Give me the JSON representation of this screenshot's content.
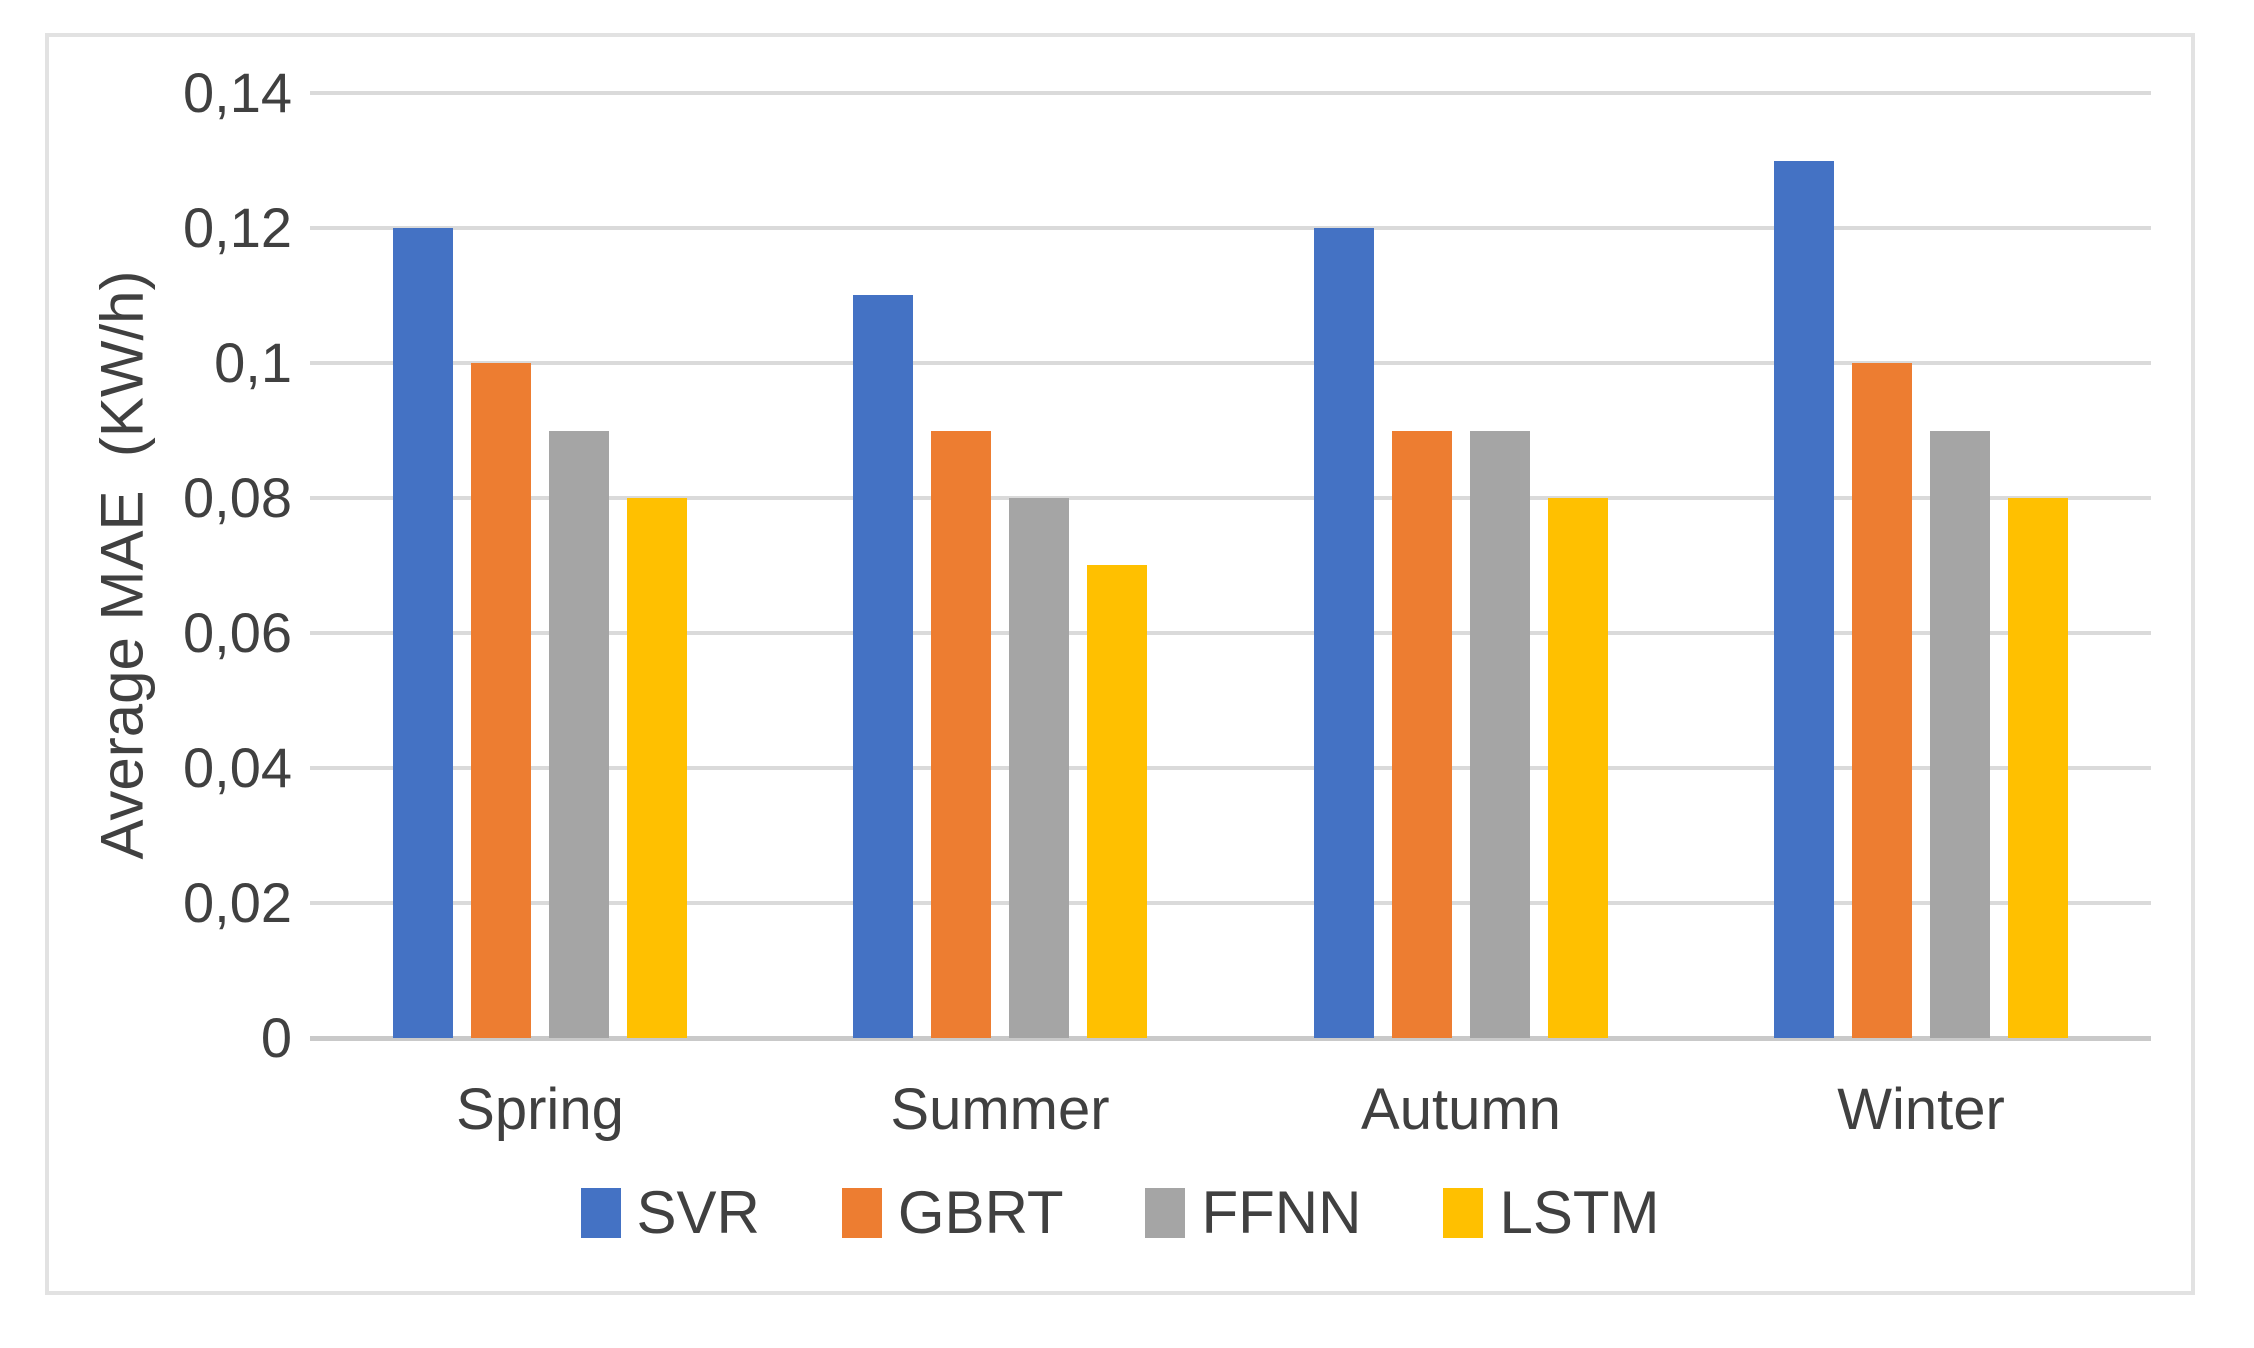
{
  "figure": {
    "background": "#ffffff",
    "frame_border_color": "#e2e2e2"
  },
  "chart_data": {
    "type": "bar",
    "title": "",
    "categories": [
      "Spring",
      "Summer",
      "Autumn",
      "Winter"
    ],
    "series": [
      {
        "name": "SVR",
        "color": "#4472C4",
        "values": [
          0.12,
          0.11,
          0.12,
          0.13
        ]
      },
      {
        "name": "GBRT",
        "color": "#ED7D31",
        "values": [
          0.1,
          0.09,
          0.09,
          0.1
        ]
      },
      {
        "name": "FFNN",
        "color": "#A5A5A5",
        "values": [
          0.09,
          0.08,
          0.09,
          0.09
        ]
      },
      {
        "name": "LSTM",
        "color": "#FFC000",
        "values": [
          0.08,
          0.07,
          0.08,
          0.08
        ]
      }
    ],
    "xlabel": "",
    "ylabel": "Average MAE  (KW/h)",
    "ylim": [
      0,
      0.14
    ],
    "ytick_step": 0.02,
    "y_tick_labels": [
      "0,14",
      "0,12",
      "0,1",
      "0,08",
      "0,06",
      "0,04",
      "0,02",
      "0"
    ],
    "decimal_separator": ",",
    "grid": true,
    "gridline_color": "#dadada",
    "axis_line_color": "#c9c9c9",
    "text_color": "#404040",
    "legend_position": "bottom"
  }
}
